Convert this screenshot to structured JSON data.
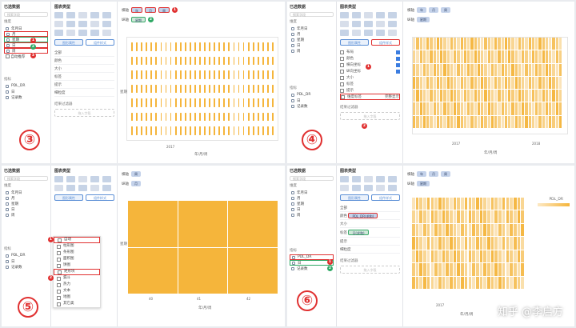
{
  "panel": {
    "title": "已选数据",
    "search": "搜索字段",
    "dim_group": "维度",
    "mea_group": "指标",
    "chart_title": "图表类型",
    "tab_props": "图形属性",
    "tab_comp": "组件样式",
    "all": "全部",
    "color": "颜色",
    "size": "大小",
    "label": "标签",
    "tip": "提示",
    "detail": "细粒度",
    "drop": "拖入字段",
    "results_filter": "结果过滤器",
    "show_count": "显示合计",
    "switch_merge": "自动推荐",
    "dim_fields": [
      "年月日",
      "月",
      "星期",
      "日",
      "周"
    ],
    "mea_fields": [
      "PDL_DR",
      "日",
      "记录数"
    ]
  },
  "shelf": {
    "row": "横轴",
    "col": "纵轴"
  },
  "s3": {
    "x_pills": [
      "年",
      "月",
      "周"
    ],
    "y_pill": "星期",
    "badge_top": "1",
    "badge_y": "2",
    "dim_badges": [
      "1",
      "2",
      "3"
    ],
    "xaxis": "年/月/周",
    "yaxis": "星期",
    "years": [
      "2017"
    ]
  },
  "s4": {
    "x_pills": [
      "年",
      "月",
      "周"
    ],
    "y_pill": "星期",
    "auto_title": "自动",
    "switch": "自动推荐",
    "checks": [
      "布局",
      "颜色",
      "横向坐标",
      "纵向坐标",
      "大小",
      "标签",
      "提示",
      "自动排序"
    ],
    "radio_label": "维度标签",
    "radio_btn": "完整显示",
    "years": [
      "2017",
      "2018"
    ],
    "xaxis": "年/月/周",
    "badges": [
      "1",
      "2"
    ]
  },
  "s5": {
    "x_pill": "周",
    "y_pill": "月",
    "menu": [
      "自动",
      "柱形图",
      "条形图",
      "面积图",
      "饼图",
      "矩形块",
      "漏斗",
      "热力",
      "文本",
      "地图",
      "其它类"
    ],
    "menu_hl": [
      0,
      5
    ],
    "xaxis": "年/月/周",
    "yaxis": "星期",
    "badges": [
      "1",
      "2"
    ],
    "xticks": [
      "40",
      "41",
      "42"
    ]
  },
  "s6": {
    "x_pills": [
      "年",
      "月",
      "周"
    ],
    "y_pill": "星期",
    "color_pill": "PDL_DR(求和)",
    "label_pill": "日(求和)",
    "legend": "PDL_DR",
    "badges": [
      "1",
      "2"
    ],
    "xaxis": "年/月/周",
    "years": [
      "2017"
    ],
    "tip_label": "提示"
  },
  "steps": [
    "③",
    "④",
    "⑤",
    "⑥"
  ],
  "watermark": "知乎 @李启方",
  "colors": {
    "accent": "#f5b53b",
    "highlight": "#e03030",
    "ok": "#2fa865",
    "pill": "#c4d2ea"
  }
}
